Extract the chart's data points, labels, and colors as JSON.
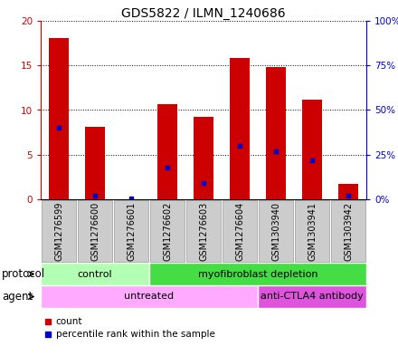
{
  "title": "GDS5822 / ILMN_1240686",
  "samples": [
    "GSM1276599",
    "GSM1276600",
    "GSM1276601",
    "GSM1276602",
    "GSM1276603",
    "GSM1276604",
    "GSM1303940",
    "GSM1303941",
    "GSM1303942"
  ],
  "count": [
    18.1,
    8.1,
    0.05,
    10.7,
    9.2,
    15.8,
    14.8,
    11.2,
    1.7
  ],
  "percentile": [
    40,
    2,
    0.5,
    18,
    9,
    30,
    27,
    22,
    2
  ],
  "ylim_left": [
    0,
    20
  ],
  "ylim_right": [
    0,
    100
  ],
  "yticks_left": [
    0,
    5,
    10,
    15,
    20
  ],
  "yticks_right": [
    0,
    25,
    50,
    75,
    100
  ],
  "ytick_labels_left": [
    "0",
    "5",
    "10",
    "15",
    "20"
  ],
  "ytick_labels_right": [
    "0%",
    "25%",
    "50%",
    "75%",
    "100%"
  ],
  "bar_color": "#cc0000",
  "marker_color": "#0000cc",
  "protocol_groups": [
    {
      "label": "control",
      "start": 0,
      "end": 3,
      "color": "#b3ffb3"
    },
    {
      "label": "myofibroblast depletion",
      "start": 3,
      "end": 9,
      "color": "#44dd44"
    }
  ],
  "agent_groups": [
    {
      "label": "untreated",
      "start": 0,
      "end": 6,
      "color": "#ffaaff"
    },
    {
      "label": "anti-CTLA4 antibody",
      "start": 6,
      "end": 9,
      "color": "#dd55dd"
    }
  ],
  "protocol_label": "protocol",
  "agent_label": "agent",
  "legend_count": "count",
  "legend_pct": "percentile rank within the sample",
  "title_fontsize": 10,
  "tick_fontsize": 7.5,
  "label_fontsize": 8.5,
  "strip_fontsize": 8,
  "legend_fontsize": 7.5
}
